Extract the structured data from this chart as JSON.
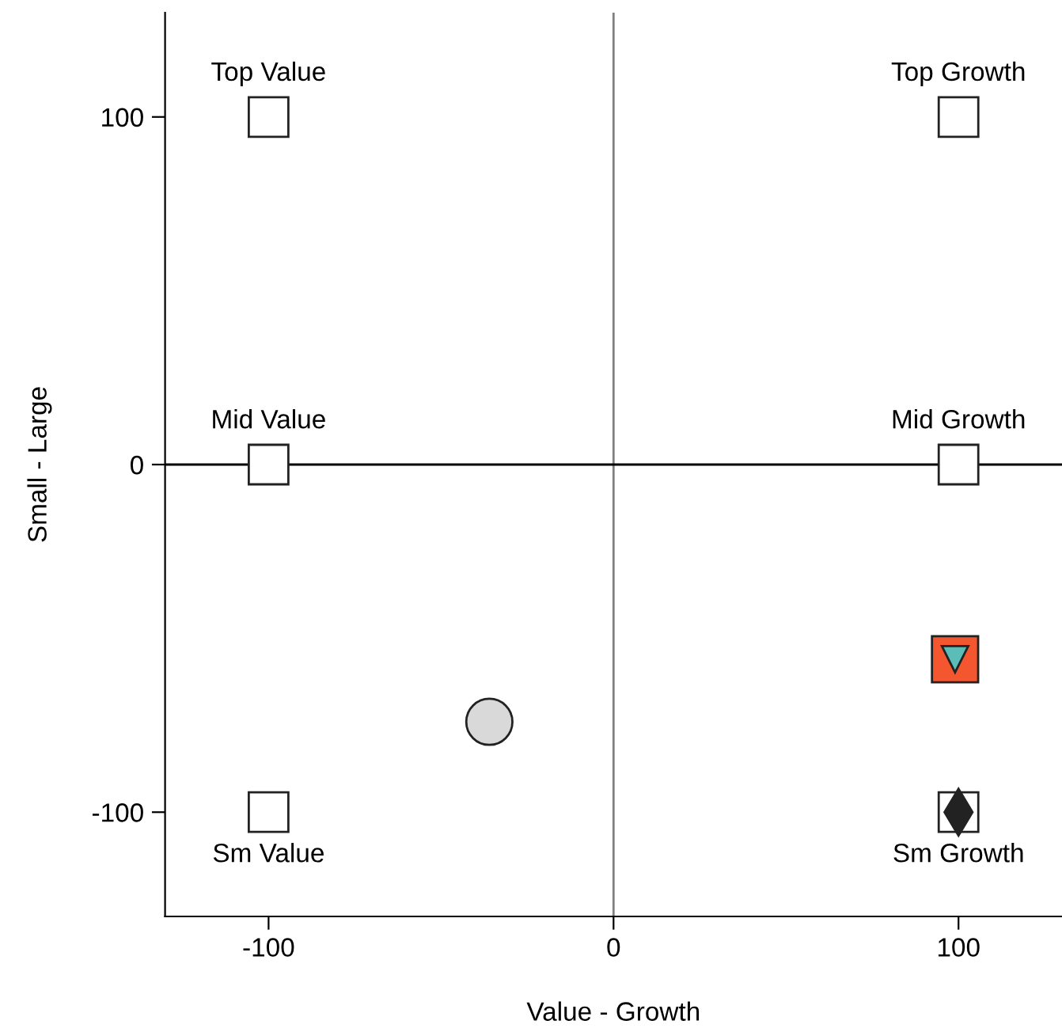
{
  "chart_data": {
    "type": "scatter",
    "xlabel": "Value - Growth",
    "ylabel": "Small - Large",
    "xlim": [
      -130,
      130
    ],
    "ylim": [
      -130,
      130
    ],
    "xticks": [
      -100,
      0,
      100
    ],
    "yticks": [
      -100,
      0,
      100
    ],
    "grid": false,
    "legend": false,
    "ref_lines": [
      {
        "axis": "x",
        "value": 0,
        "color": "#808080"
      },
      {
        "axis": "y",
        "value": 0,
        "color": "#000000"
      }
    ],
    "series": [
      {
        "color": "#ffffff",
        "marker": "square",
        "x": [
          -100,
          100,
          -100,
          100,
          -100,
          100
        ],
        "values": [
          100,
          100,
          0,
          0,
          -100,
          -100
        ],
        "value_labels": [
          "Top Value",
          "Top Growth",
          "Mid Value",
          "Mid Growth",
          "Sm Value",
          "Sm Growth"
        ]
      },
      {
        "color": "#d9d9d9",
        "marker": "circle",
        "x": [
          -36
        ],
        "values": [
          -74
        ]
      },
      {
        "color": "#f4572f",
        "marker": "square",
        "x": [
          99
        ],
        "values": [
          -56
        ]
      },
      {
        "color": "#5bbcb8",
        "marker": "triangle",
        "x": [
          99
        ],
        "values": [
          -56
        ]
      },
      {
        "color": "#222222",
        "marker": "diamond",
        "x": [
          100
        ],
        "values": [
          -100
        ]
      }
    ]
  }
}
